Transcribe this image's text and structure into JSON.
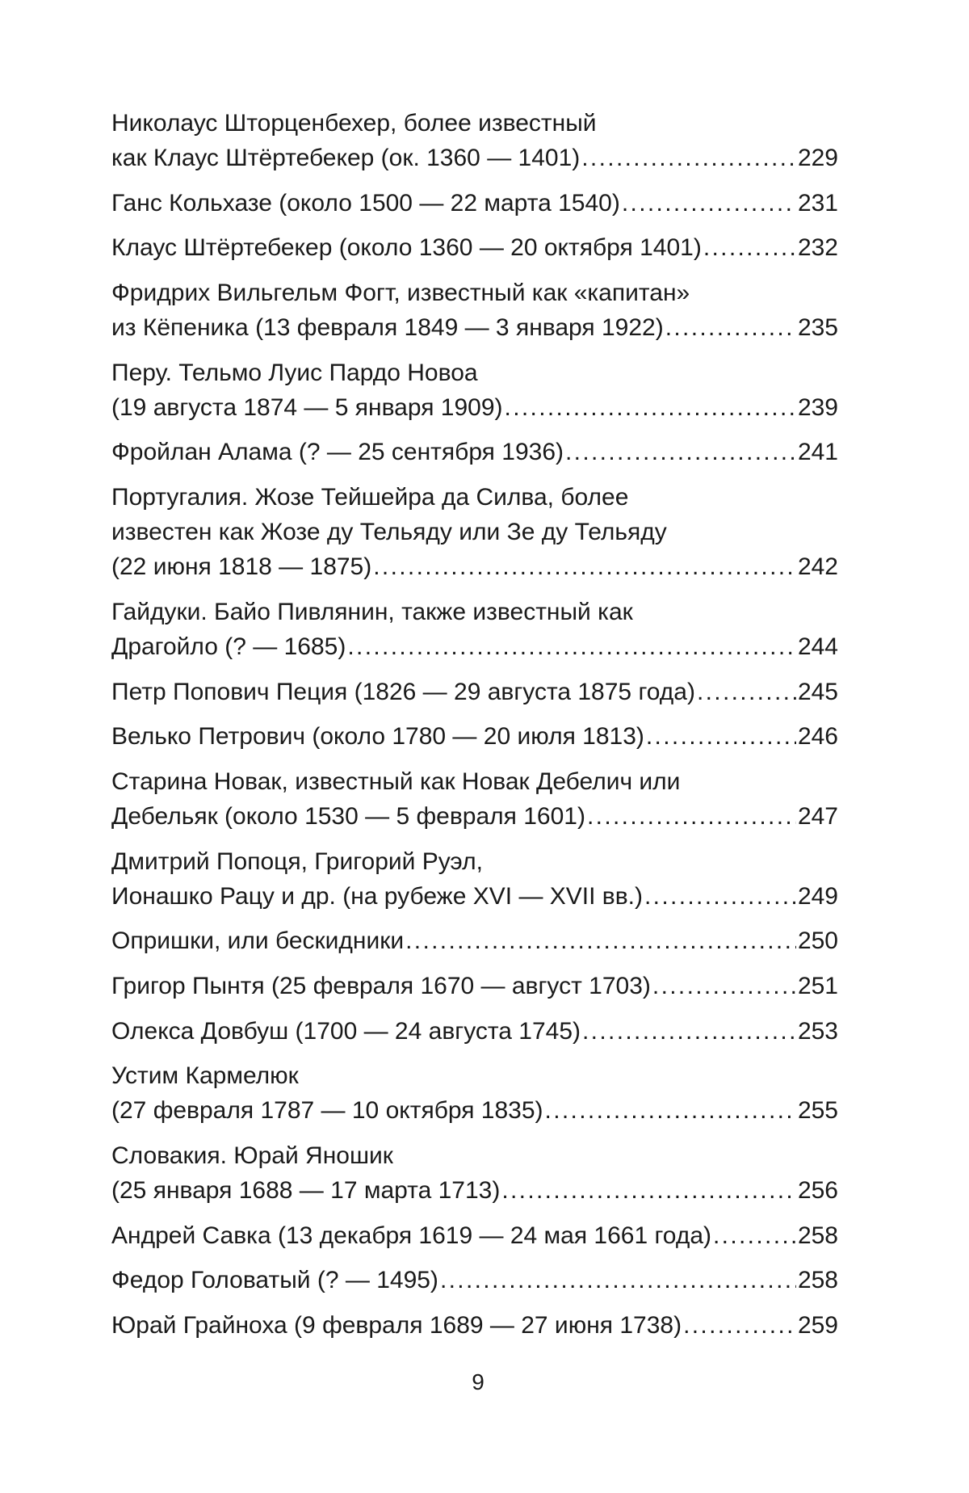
{
  "toc": [
    {
      "lines": [
        "Николаус Шторценбехер, более известный",
        "как Клаус Штёртебекер (ок. 1360 — 1401)"
      ],
      "page": "229"
    },
    {
      "lines": [
        "Ганс Кольхазе (около 1500 — 22 марта 1540)"
      ],
      "page": "231"
    },
    {
      "lines": [
        "Клаус Штёртебекер (около 1360 — 20 октября 1401)"
      ],
      "page": "232"
    },
    {
      "lines": [
        "Фридрих Вильгельм Фогт, известный как «капитан»",
        "из Кёпеника (13 февраля 1849 — 3 января 1922)"
      ],
      "page": "235"
    },
    {
      "lines": [
        "Перу. Тельмо Луис Пардо Новоа",
        "(19 августа 1874 — 5 января 1909)"
      ],
      "page": "239"
    },
    {
      "lines": [
        "Фройлан Алама (? — 25 сентября 1936)"
      ],
      "page": "241"
    },
    {
      "lines": [
        "Португалия. Жозе Тейшейра да Силва, более",
        "известен как Жозе ду Тельяду или Зе ду Тельяду",
        "(22 июня 1818 — 1875)"
      ],
      "page": "242"
    },
    {
      "lines": [
        "Гайдуки. Байо Пивлянин, также известный как",
        "Драгойло (? — 1685)"
      ],
      "page": "244"
    },
    {
      "lines": [
        "Петр Попович Пеция (1826 — 29 августа 1875 года)"
      ],
      "page": "245"
    },
    {
      "lines": [
        "Велько Петрович (около 1780 — 20 июля 1813)"
      ],
      "page": "246"
    },
    {
      "lines": [
        "Старина Новак, известный как Новак Дебелич или",
        "Дебельяк (около 1530 — 5 февраля 1601)"
      ],
      "page": "247"
    },
    {
      "lines": [
        "Дмитрий Попоця, Григорий Руэл,",
        "Ионашко Рацу и др. (на рубеже XVI — XVII вв.)"
      ],
      "page": "249"
    },
    {
      "lines": [
        "Опришки, или бескидники"
      ],
      "page": "250"
    },
    {
      "lines": [
        "Григор Пынтя (25 февраля 1670 — август 1703)"
      ],
      "page": "251"
    },
    {
      "lines": [
        "Олекса Довбуш (1700 — 24 августа 1745)"
      ],
      "page": "253"
    },
    {
      "lines": [
        "Устим Кармелюк",
        "(27 февраля 1787 — 10 октября 1835)"
      ],
      "page": "255"
    },
    {
      "lines": [
        "Словакия. Юрай Яношик",
        "(25 января 1688 — 17 марта 1713)"
      ],
      "page": "256"
    },
    {
      "lines": [
        "Андрей Савка (13 декабря 1619 — 24 мая 1661 года)"
      ],
      "page": "258"
    },
    {
      "lines": [
        "Федор Головатый (? — 1495)"
      ],
      "page": "258"
    },
    {
      "lines": [
        "Юрай Грайноха (9 февраля 1689 — 27 июня 1738)"
      ],
      "page": "259"
    }
  ],
  "page_number": "9"
}
